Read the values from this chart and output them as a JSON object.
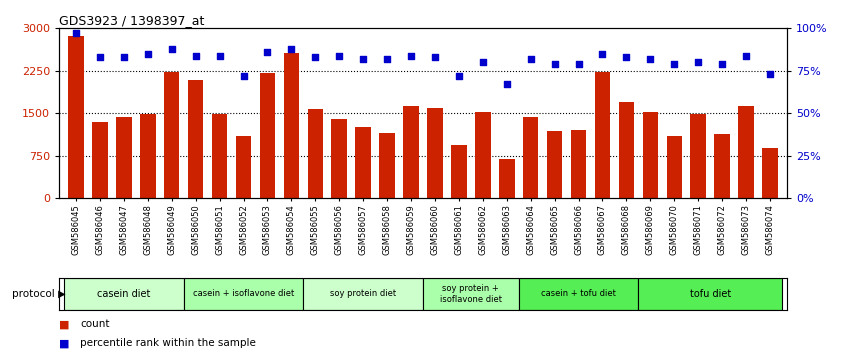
{
  "title": "GDS3923 / 1398397_at",
  "samples": [
    "GSM586045",
    "GSM586046",
    "GSM586047",
    "GSM586048",
    "GSM586049",
    "GSM586050",
    "GSM586051",
    "GSM586052",
    "GSM586053",
    "GSM586054",
    "GSM586055",
    "GSM586056",
    "GSM586057",
    "GSM586058",
    "GSM586059",
    "GSM586060",
    "GSM586061",
    "GSM586062",
    "GSM586063",
    "GSM586064",
    "GSM586065",
    "GSM586066",
    "GSM586067",
    "GSM586068",
    "GSM586069",
    "GSM586070",
    "GSM586071",
    "GSM586072",
    "GSM586073",
    "GSM586074"
  ],
  "counts": [
    2870,
    1350,
    1430,
    1480,
    2230,
    2080,
    1480,
    1100,
    2210,
    2560,
    1580,
    1400,
    1250,
    1150,
    1620,
    1590,
    940,
    1530,
    700,
    1430,
    1180,
    1200,
    2220,
    1700,
    1520,
    1100,
    1490,
    1130,
    1620,
    880
  ],
  "percentile_ranks": [
    97,
    83,
    83,
    85,
    88,
    84,
    84,
    72,
    86,
    88,
    83,
    84,
    82,
    82,
    84,
    83,
    72,
    80,
    67,
    82,
    79,
    79,
    85,
    83,
    82,
    79,
    80,
    79,
    84,
    73
  ],
  "bar_color": "#cc2200",
  "dot_color": "#0000cc",
  "ylim_left": [
    0,
    3000
  ],
  "ylim_right": [
    0,
    100
  ],
  "yticks_left": [
    0,
    750,
    1500,
    2250,
    3000
  ],
  "ytick_labels_left": [
    "0",
    "750",
    "1500",
    "2250",
    "3000"
  ],
  "yticks_right": [
    0,
    25,
    50,
    75,
    100
  ],
  "ytick_labels_right": [
    "0%",
    "25%",
    "50%",
    "75%",
    "100%"
  ],
  "grid_lines": [
    750,
    1500,
    2250
  ],
  "groups": [
    {
      "label": "casein diet",
      "start": 0,
      "end": 5,
      "color": "#ccffcc"
    },
    {
      "label": "casein + isoflavone diet",
      "start": 5,
      "end": 10,
      "color": "#aaffaa"
    },
    {
      "label": "soy protein diet",
      "start": 10,
      "end": 15,
      "color": "#ccffcc"
    },
    {
      "label": "soy protein +\nisoflavone diet",
      "start": 15,
      "end": 19,
      "color": "#aaffaa"
    },
    {
      "label": "casein + tofu diet",
      "start": 19,
      "end": 24,
      "color": "#55ee55"
    },
    {
      "label": "tofu diet",
      "start": 24,
      "end": 30,
      "color": "#55ee55"
    }
  ],
  "protocol_label": "protocol",
  "legend_count_label": "count",
  "legend_percentile_label": "percentile rank within the sample",
  "bar_width": 0.65
}
